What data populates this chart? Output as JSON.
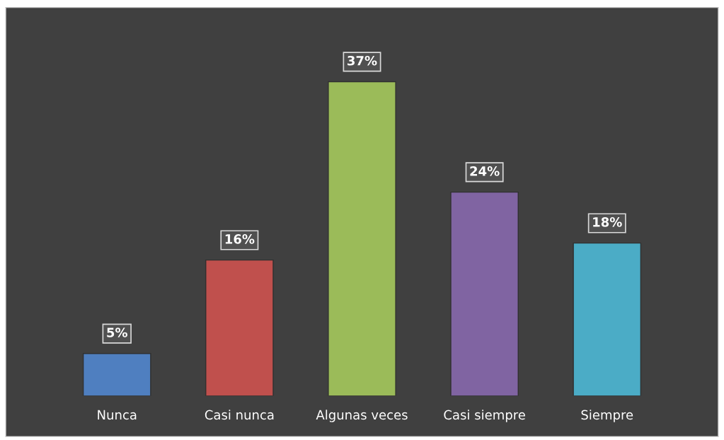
{
  "chart_data": {
    "type": "bar",
    "categories": [
      "Nunca",
      "Casi nunca",
      "Algunas veces",
      "Casi siempre",
      "Siempre"
    ],
    "values": [
      5,
      16,
      37,
      24,
      18
    ],
    "value_labels": [
      "5%",
      "16%",
      "37%",
      "24%",
      "18%"
    ],
    "colors": [
      "#4f7fc0",
      "#c0504d",
      "#9bbb59",
      "#8064a2",
      "#4bacc6"
    ],
    "grid": false,
    "legend": false
  }
}
